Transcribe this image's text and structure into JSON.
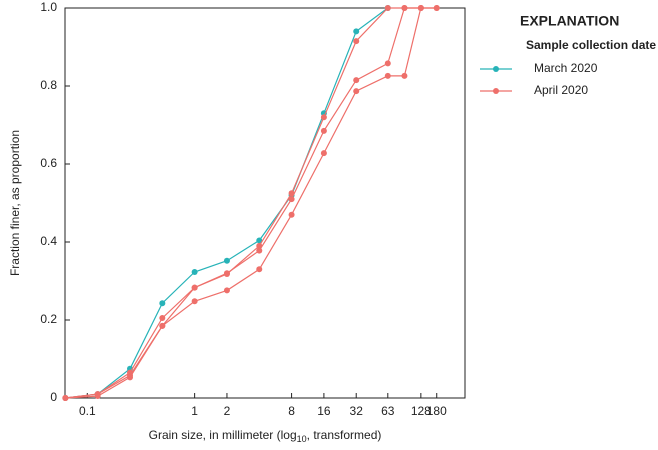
{
  "chart_data": {
    "type": "line",
    "y_label": "Fraction finer, as proportion",
    "x_label": [
      "Grain size, in millimeter (log",
      "10",
      ", transformed)"
    ],
    "legend_title": "EXPLANATION",
    "legend_subtitle": "Sample collection date",
    "x_scale": "log",
    "xlim": [
      0.062,
      330
    ],
    "xticks": [
      0.1,
      1,
      2,
      8,
      16,
      32,
      63,
      128,
      180
    ],
    "ylim": [
      0,
      1
    ],
    "yticks": [
      0,
      0.2,
      0.4,
      0.6,
      0.8,
      {
        "value": 1,
        "label": "1.0"
      }
    ],
    "series": [
      {
        "name": "March 2020",
        "color": "#27b3b8",
        "lines": [
          {
            "x": [
              0.0625,
              0.125,
              0.25,
              0.5,
              1,
              2,
              4,
              8,
              16,
              32,
              63
            ],
            "values": [
              0,
              0.01,
              0.075,
              0.243,
              0.323,
              0.352,
              0.404,
              0.52,
              0.73,
              0.94,
              1.0
            ]
          }
        ]
      },
      {
        "name": "April 2020",
        "color": "#ee6f6a",
        "lines": [
          {
            "x": [
              0.0625,
              0.125,
              0.25,
              0.5,
              1,
              2,
              4,
              8,
              16,
              32,
              63,
              90,
              128
            ],
            "values": [
              0,
              0.01,
              0.065,
              0.205,
              0.283,
              0.318,
              0.39,
              0.525,
              0.72,
              0.915,
              1.0,
              1.0,
              1.0
            ]
          },
          {
            "x": [
              0.0625,
              0.125,
              0.25,
              0.5,
              1,
              2,
              4,
              8,
              16,
              32,
              63,
              90,
              128,
              180
            ],
            "values": [
              0,
              0.01,
              0.058,
              0.185,
              0.283,
              0.32,
              0.378,
              0.51,
              0.685,
              0.815,
              0.858,
              1.0,
              1.0,
              1.0
            ]
          },
          {
            "x": [
              0.0625,
              0.125,
              0.25,
              0.5,
              1,
              2,
              4,
              8,
              16,
              32,
              63,
              90,
              128,
              180
            ],
            "values": [
              0,
              0.005,
              0.053,
              0.185,
              0.248,
              0.276,
              0.33,
              0.47,
              0.628,
              0.787,
              0.826,
              0.826,
              1.0,
              1.0
            ]
          }
        ]
      }
    ]
  }
}
